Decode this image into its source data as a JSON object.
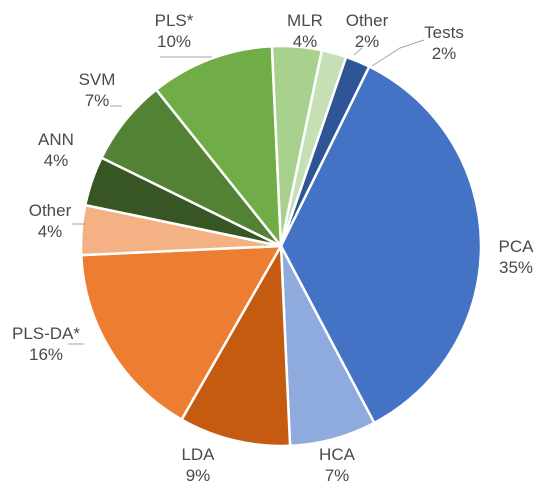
{
  "chart_data": {
    "type": "pie",
    "title": "",
    "slices": [
      {
        "label": "Tests",
        "value": 2,
        "pct_label": "2%",
        "color": "#2f5597"
      },
      {
        "label": "PCA",
        "value": 35,
        "pct_label": "35%",
        "color": "#4472c4"
      },
      {
        "label": "HCA",
        "value": 7,
        "pct_label": "7%",
        "color": "#8faadc"
      },
      {
        "label": "LDA",
        "value": 9,
        "pct_label": "9%",
        "color": "#c55a11"
      },
      {
        "label": "PLS-DA*",
        "value": 16,
        "pct_label": "16%",
        "color": "#ed7d31"
      },
      {
        "label": "Other",
        "value": 4,
        "pct_label": "4%",
        "color": "#f4b183"
      },
      {
        "label": "ANN",
        "value": 4,
        "pct_label": "4%",
        "color": "#375623"
      },
      {
        "label": "SVM",
        "value": 7,
        "pct_label": "7%",
        "color": "#548235"
      },
      {
        "label": "PLS*",
        "value": 10,
        "pct_label": "10%",
        "color": "#70ad47"
      },
      {
        "label": "MLR",
        "value": 4,
        "pct_label": "4%",
        "color": "#a9d18e"
      },
      {
        "label": "Other",
        "value": 2,
        "pct_label": "2%",
        "color": "#c5e0b4"
      }
    ],
    "legend": "none",
    "labels": "outside"
  }
}
